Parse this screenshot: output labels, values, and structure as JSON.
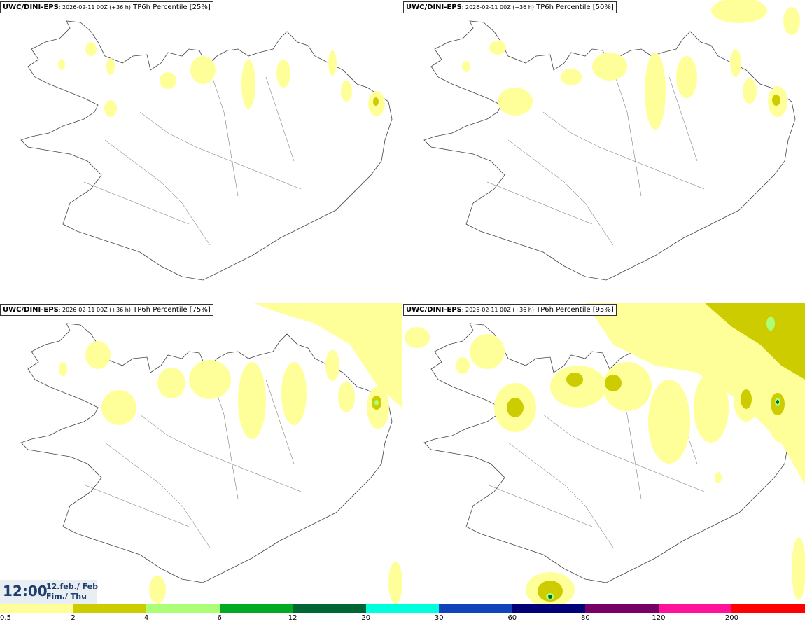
{
  "panels": [
    {
      "model": "UWC/DINI-EPS",
      "run": ": 2026-02-11 00Z (+36 h)",
      "product": "TP6h Percentile [25%]"
    },
    {
      "model": "UWC/DINI-EPS",
      "run": ": 2026-02-11 00Z (+36 h)",
      "product": "TP6h Percentile [50%]"
    },
    {
      "model": "UWC/DINI-EPS",
      "run": ": 2026-02-11 00Z (+36 h)",
      "product": "TP6h Percentile [75%]"
    },
    {
      "model": "UWC/DINI-EPS",
      "run": ": 2026-02-11 00Z (+36 h)",
      "product": "TP6h Percentile [95%]"
    }
  ],
  "time": {
    "clock": "12:00",
    "date_line1": "12.feb./ Feb",
    "date_line2": "Fim./ Thu"
  },
  "legend": {
    "colors": [
      "#ffff99",
      "#cccc00",
      "#aaff77",
      "#00aa22",
      "#006633",
      "#00ffdd",
      "#1144bb",
      "#000077",
      "#770066",
      "#ff1199",
      "#ff0000"
    ],
    "labels": [
      "0.5",
      "2",
      "4",
      "6",
      "12",
      "20",
      "30",
      "60",
      "80",
      "120",
      "200"
    ]
  }
}
